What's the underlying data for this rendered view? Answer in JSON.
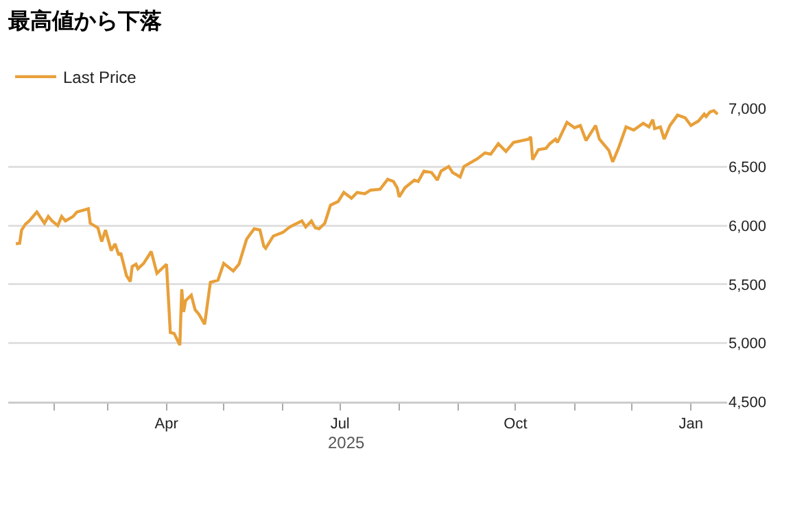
{
  "chart_data": {
    "type": "line",
    "title": "最高値から下落",
    "annotations": [
      "2025"
    ],
    "x": [
      "2025-01-12",
      "2025-01-14",
      "2025-01-15",
      "2025-01-17",
      "2025-01-19",
      "2025-01-23",
      "2025-01-27",
      "2025-01-29",
      "2025-01-31",
      "2025-02-03",
      "2025-02-05",
      "2025-02-07",
      "2025-02-11",
      "2025-02-13",
      "2025-02-19",
      "2025-02-20",
      "2025-02-24",
      "2025-02-26",
      "2025-02-28",
      "2025-03-03",
      "2025-03-05",
      "2025-03-07",
      "2025-03-08",
      "2025-03-11",
      "2025-03-13",
      "2025-03-14",
      "2025-03-16",
      "2025-03-17",
      "2025-03-20",
      "2025-03-24",
      "2025-03-27",
      "2025-04-01",
      "2025-04-03",
      "2025-04-05",
      "2025-04-08",
      "2025-04-09",
      "2025-04-10",
      "2025-04-11",
      "2025-04-14",
      "2025-04-16",
      "2025-04-18",
      "2025-04-21",
      "2025-04-24",
      "2025-04-28",
      "2025-05-01",
      "2025-05-06",
      "2025-05-09",
      "2025-05-13",
      "2025-05-17",
      "2025-05-20",
      "2025-05-22",
      "2025-05-23",
      "2025-05-27",
      "2025-06-01",
      "2025-06-04",
      "2025-06-06",
      "2025-06-11",
      "2025-06-13",
      "2025-06-16",
      "2025-06-18",
      "2025-06-20",
      "2025-06-23",
      "2025-06-26",
      "2025-06-30",
      "2025-07-03",
      "2025-07-07",
      "2025-07-10",
      "2025-07-14",
      "2025-07-17",
      "2025-07-22",
      "2025-07-26",
      "2025-07-29",
      "2025-07-31",
      "2025-08-01",
      "2025-08-04",
      "2025-08-09",
      "2025-08-11",
      "2025-08-14",
      "2025-08-18",
      "2025-08-21",
      "2025-08-23",
      "2025-08-27",
      "2025-08-29",
      "2025-09-02",
      "2025-09-04",
      "2025-09-11",
      "2025-09-15",
      "2025-09-18",
      "2025-09-22",
      "2025-09-26",
      "2025-09-30",
      "2025-10-08",
      "2025-10-09",
      "2025-10-10",
      "2025-10-13",
      "2025-10-17",
      "2025-10-19",
      "2025-10-22",
      "2025-10-23",
      "2025-10-28",
      "2025-11-01",
      "2025-11-04",
      "2025-11-07",
      "2025-11-12",
      "2025-11-14",
      "2025-11-19",
      "2025-11-21",
      "2025-11-24",
      "2025-11-28",
      "2025-12-02",
      "2025-12-07",
      "2025-12-10",
      "2025-12-12",
      "2025-12-13",
      "2025-12-16",
      "2025-12-18",
      "2025-12-21",
      "2025-12-25",
      "2025-12-29",
      "2026-01-01",
      "2026-01-05",
      "2026-01-08",
      "2026-01-09",
      "2026-01-11",
      "2026-01-13",
      "2026-01-15"
    ],
    "series": [
      {
        "name": "Last Price",
        "color": "#e8a03a",
        "values": [
          5845,
          5850,
          5962,
          6012,
          6040,
          6116,
          6020,
          6078,
          6040,
          6000,
          6078,
          6040,
          6078,
          6116,
          6144,
          6020,
          5981,
          5864,
          5962,
          5787,
          5845,
          5748,
          5767,
          5574,
          5523,
          5651,
          5671,
          5632,
          5678,
          5779,
          5593,
          5671,
          5089,
          5081,
          4981,
          5457,
          5264,
          5360,
          5407,
          5283,
          5244,
          5159,
          5516,
          5535,
          5678,
          5613,
          5671,
          5884,
          5973,
          5962,
          5826,
          5807,
          5911,
          5942,
          5981,
          6000,
          6040,
          5988,
          6040,
          5981,
          5973,
          6020,
          6174,
          6206,
          6283,
          6233,
          6283,
          6272,
          6302,
          6310,
          6395,
          6376,
          6322,
          6244,
          6322,
          6388,
          6376,
          6465,
          6453,
          6388,
          6465,
          6504,
          6453,
          6415,
          6504,
          6570,
          6620,
          6609,
          6698,
          6632,
          6709,
          6737,
          6756,
          6562,
          6647,
          6659,
          6698,
          6737,
          6709,
          6880,
          6834,
          6853,
          6725,
          6853,
          6737,
          6640,
          6543,
          6659,
          6841,
          6814,
          6872,
          6841,
          6903,
          6826,
          6841,
          6737,
          6853,
          6942,
          6919,
          6853,
          6892,
          6950,
          6930,
          6969,
          6980,
          6950
        ]
      }
    ],
    "xlim": [
      "2025-01-08",
      "2026-01-20"
    ],
    "xticks": [
      {
        "value": "2025-02-01",
        "label": null
      },
      {
        "value": "2025-03-01",
        "label": null
      },
      {
        "value": "2025-04-01",
        "label": "Apr"
      },
      {
        "value": "2025-05-01",
        "label": null
      },
      {
        "value": "2025-06-01",
        "label": null
      },
      {
        "value": "2025-07-01",
        "label": "Jul"
      },
      {
        "value": "2025-08-01",
        "label": null
      },
      {
        "value": "2025-09-01",
        "label": null
      },
      {
        "value": "2025-10-01",
        "label": "Oct"
      },
      {
        "value": "2025-11-01",
        "label": null
      },
      {
        "value": "2025-12-01",
        "label": null
      },
      {
        "value": "2026-01-01",
        "label": "Jan"
      }
    ],
    "ylim": [
      4500,
      7000
    ],
    "yticks": [
      {
        "value": 4500,
        "label": "4,500"
      },
      {
        "value": 5000,
        "label": "5,000"
      },
      {
        "value": 5500,
        "label": "5,500"
      },
      {
        "value": 6000,
        "label": "6,000"
      },
      {
        "value": 6500,
        "label": "6,500"
      },
      {
        "value": 7000,
        "label": "7,000"
      }
    ],
    "grid": "y",
    "legend": "top left",
    "marker": "none",
    "line_style": "solid"
  }
}
